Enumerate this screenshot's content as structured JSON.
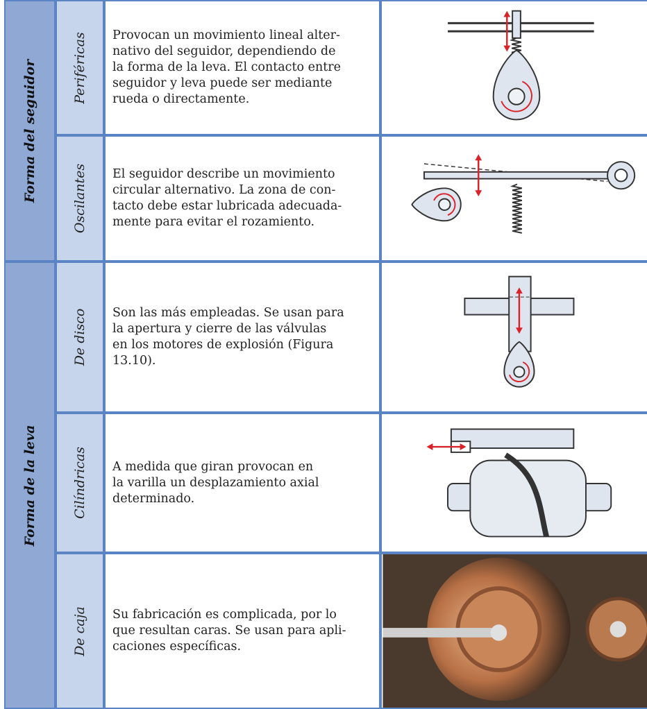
{
  "table": {
    "groups": [
      {
        "label": "Forma del seguidor",
        "rows": [
          {
            "label": "Periféricas",
            "description": [
              "Provocan un movimiento lineal alter-",
              "nativo del seguidor, dependiendo de",
              "la forma de la leva. El contacto entre",
              "seguidor y leva puede ser mediante",
              "rueda o directamente."
            ]
          },
          {
            "label": "Oscilantes",
            "description": [
              "El seguidor describe un movimiento",
              "circular alternativo. La zona de con-",
              "tacto debe estar lubricada adecuada-",
              "mente para evitar el rozamiento."
            ]
          }
        ]
      },
      {
        "label": "Forma de la leva",
        "rows": [
          {
            "label": "De disco",
            "description": [
              "Son las más empleadas. Se usan para",
              "la apertura y cierre de las válvulas",
              "en los motores de explosión (Figura",
              "13.10)."
            ]
          },
          {
            "label": "Cilíndricas",
            "description": [
              "A medida que giran provocan en",
              "la varilla un desplazamiento axial",
              "determinado."
            ]
          },
          {
            "label": "De caja",
            "description": [
              "Su fabricación es complicada, por lo",
              "que resultan caras. Se usan para apli-",
              "caciones específicas."
            ]
          }
        ]
      }
    ]
  }
}
